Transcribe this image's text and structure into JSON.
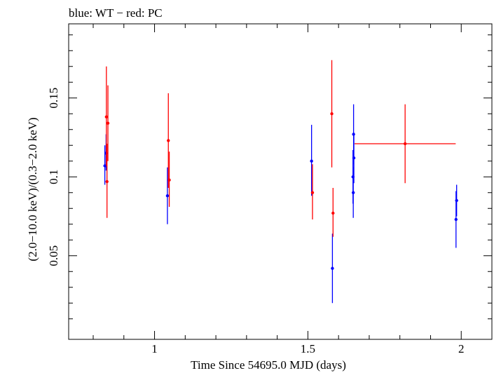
{
  "chart_data": {
    "type": "scatter",
    "title": "blue: WT − red: PC",
    "xlabel": "Time Since 54695.0 MJD (days)",
    "ylabel": "(2.0−10.0 keV)/(0.3−2.0 keV)",
    "xlim": [
      0.72,
      2.1
    ],
    "ylim": [
      -0.003,
      0.197
    ],
    "x_ticks": [
      {
        "value": 1,
        "label": "1"
      },
      {
        "value": 1.5,
        "label": "1.5"
      },
      {
        "value": 2,
        "label": "2"
      }
    ],
    "y_ticks": [
      {
        "value": 0.05,
        "label": "0.05"
      },
      {
        "value": 0.1,
        "label": "0.1"
      },
      {
        "value": 0.15,
        "label": "0.15"
      }
    ],
    "series": [
      {
        "name": "WT",
        "color": "#0000ff",
        "points": [
          {
            "x": 0.838,
            "y": 0.107,
            "ylo": 0.095,
            "yhi": 0.12,
            "xerr": 0
          },
          {
            "x": 0.842,
            "y": 0.115,
            "ylo": 0.104,
            "yhi": 0.127,
            "xerr": 0
          },
          {
            "x": 1.042,
            "y": 0.088,
            "ylo": 0.07,
            "yhi": 0.106,
            "xerr": 0
          },
          {
            "x": 1.512,
            "y": 0.11,
            "ylo": 0.088,
            "yhi": 0.133,
            "xerr": 0
          },
          {
            "x": 1.58,
            "y": 0.042,
            "ylo": 0.02,
            "yhi": 0.064,
            "xerr": 0
          },
          {
            "x": 1.647,
            "y": 0.1,
            "ylo": 0.083,
            "yhi": 0.117,
            "xerr": 0
          },
          {
            "x": 1.648,
            "y": 0.09,
            "ylo": 0.074,
            "yhi": 0.106,
            "xerr": 0
          },
          {
            "x": 1.649,
            "y": 0.127,
            "ylo": 0.108,
            "yhi": 0.146,
            "xerr": 0
          },
          {
            "x": 1.65,
            "y": 0.112,
            "ylo": 0.096,
            "yhi": 0.128,
            "xerr": 0
          },
          {
            "x": 1.983,
            "y": 0.073,
            "ylo": 0.055,
            "yhi": 0.091,
            "xerr": 0
          },
          {
            "x": 1.985,
            "y": 0.085,
            "ylo": 0.075,
            "yhi": 0.095,
            "xerr": 0
          }
        ]
      },
      {
        "name": "PC",
        "color": "#ff0000",
        "points": [
          {
            "x": 0.843,
            "y": 0.138,
            "ylo": 0.107,
            "yhi": 0.17,
            "xerr": 0
          },
          {
            "x": 0.845,
            "y": 0.097,
            "ylo": 0.074,
            "yhi": 0.121,
            "xerr": 0
          },
          {
            "x": 0.848,
            "y": 0.134,
            "ylo": 0.11,
            "yhi": 0.158,
            "xerr": 0
          },
          {
            "x": 1.045,
            "y": 0.123,
            "ylo": 0.093,
            "yhi": 0.153,
            "xerr": 0
          },
          {
            "x": 1.048,
            "y": 0.098,
            "ylo": 0.081,
            "yhi": 0.116,
            "xerr": 0
          },
          {
            "x": 1.515,
            "y": 0.09,
            "ylo": 0.073,
            "yhi": 0.108,
            "xerr": 0
          },
          {
            "x": 1.578,
            "y": 0.14,
            "ylo": 0.106,
            "yhi": 0.174,
            "xerr": 0
          },
          {
            "x": 1.582,
            "y": 0.077,
            "ylo": 0.062,
            "yhi": 0.093,
            "xerr": 0
          },
          {
            "x": 1.817,
            "y": 0.121,
            "ylo": 0.096,
            "yhi": 0.146,
            "xerr": 0.165
          }
        ]
      }
    ]
  }
}
